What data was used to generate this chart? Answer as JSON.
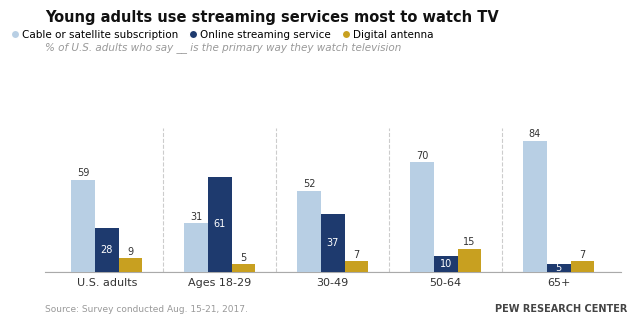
{
  "title": "Young adults use streaming services most to watch TV",
  "subtitle": "% of U.S. adults who say __ is the primary way they watch television",
  "categories": [
    "U.S. adults",
    "Ages 18-29",
    "30-49",
    "50-64",
    "65+"
  ],
  "series": {
    "Cable or satellite subscription": [
      59,
      31,
      52,
      70,
      84
    ],
    "Online streaming service": [
      28,
      61,
      37,
      10,
      5
    ],
    "Digital antenna": [
      9,
      5,
      7,
      15,
      7
    ]
  },
  "colors": {
    "Cable or satellite subscription": "#b8cfe4",
    "Online streaming service": "#1e3a6e",
    "Digital antenna": "#c8a020"
  },
  "source": "Source: Survey conducted Aug. 15-21, 2017.",
  "credit": "PEW RESEARCH CENTER",
  "ylim": [
    0,
    92
  ],
  "bar_width": 0.21
}
